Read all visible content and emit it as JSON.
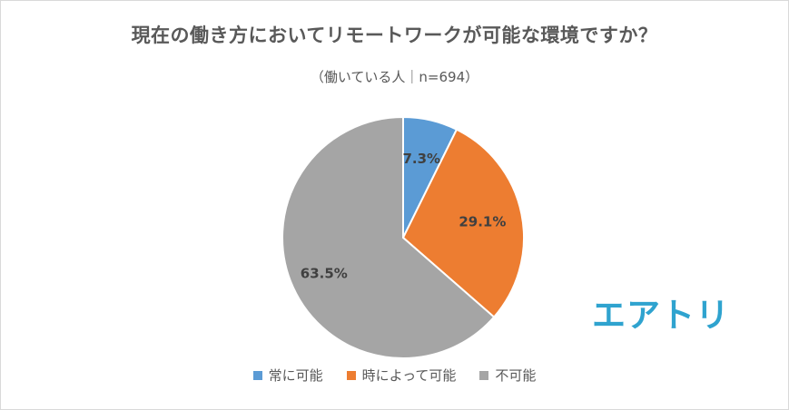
{
  "chart_data": {
    "type": "pie",
    "title": "現在の働き方においてリモートワークが可能な環境ですか？",
    "subtitle": "（働いている人｜n=694）",
    "categories": [
      "常に可能",
      "時によって可能",
      "不可能"
    ],
    "values": [
      7.3,
      29.1,
      63.5
    ],
    "value_labels": [
      "7.3%",
      "29.1%",
      "63.5%"
    ],
    "colors": [
      "#5b9bd5",
      "#ed7d31",
      "#a5a5a5"
    ],
    "legend_position": "bottom",
    "start_angle": "12 o'clock, clockwise"
  },
  "logo": {
    "text": "エアトリ",
    "color": "#2fa3cf"
  }
}
